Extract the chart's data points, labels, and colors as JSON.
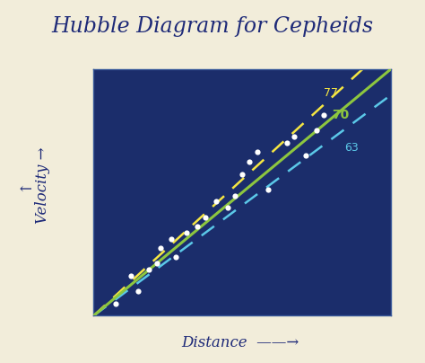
{
  "title": "Hubble Diagram for Cepheids",
  "title_color": "#1e2a78",
  "bg_outer": "#f2edda",
  "bg_inner": "#1b2d6b",
  "xlabel": "Distance",
  "ylabel": "Velocity",
  "arrow_color": "#1e2a78",
  "line_green_color": "#8dc63f",
  "line_yellow_color": "#f5e642",
  "line_blue_color": "#5bc8e8",
  "label_77": "77",
  "label_70": "70",
  "label_63": "63",
  "label_77_color": "#f5e642",
  "label_70_color": "#8dc63f",
  "label_63_color": "#5bc8e8",
  "scatter_points": [
    [
      0.06,
      0.04
    ],
    [
      0.1,
      0.13
    ],
    [
      0.12,
      0.08
    ],
    [
      0.15,
      0.15
    ],
    [
      0.17,
      0.17
    ],
    [
      0.18,
      0.22
    ],
    [
      0.21,
      0.25
    ],
    [
      0.22,
      0.19
    ],
    [
      0.25,
      0.27
    ],
    [
      0.28,
      0.29
    ],
    [
      0.3,
      0.32
    ],
    [
      0.33,
      0.37
    ],
    [
      0.36,
      0.35
    ],
    [
      0.38,
      0.39
    ],
    [
      0.4,
      0.46
    ],
    [
      0.42,
      0.5
    ],
    [
      0.44,
      0.53
    ],
    [
      0.47,
      0.41
    ],
    [
      0.52,
      0.56
    ],
    [
      0.54,
      0.58
    ],
    [
      0.57,
      0.52
    ],
    [
      0.6,
      0.6
    ],
    [
      0.62,
      0.65
    ]
  ],
  "xlim": [
    0.0,
    0.8
  ],
  "ylim": [
    0.0,
    0.8
  ],
  "slope_70": 1.0,
  "slope_77": 1.105,
  "slope_63": 0.895,
  "title_fontsize": 17,
  "label_fontsize": 12
}
